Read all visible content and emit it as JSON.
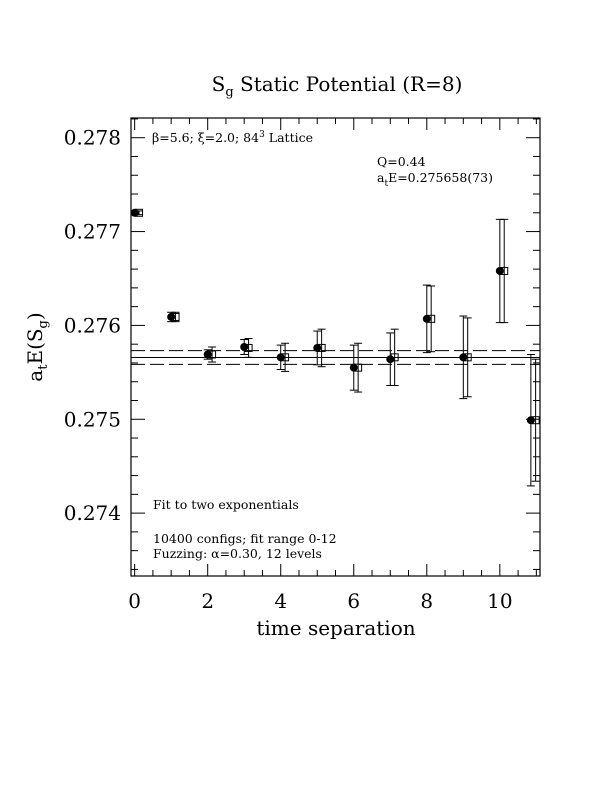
{
  "chart_data": {
    "type": "scatter",
    "title_main": "S",
    "title_sub": "g",
    "title_rest": " Static Potential (R=8)",
    "xlabel": "time separation",
    "ylabel_pre": "a",
    "ylabel_sub1": "t",
    "ylabel_mid": "E(S",
    "ylabel_sub2": "g",
    "ylabel_post": ")",
    "xlim": [
      -0.1,
      11.1
    ],
    "ylim": [
      0.27333,
      0.27821
    ],
    "xticks": [
      "0",
      "2",
      "4",
      "6",
      "8",
      "10"
    ],
    "xtick_values": [
      0,
      2,
      4,
      6,
      8,
      10
    ],
    "yticks": [
      "0.274",
      "0.275",
      "0.276",
      "0.277",
      "0.278"
    ],
    "ytick_values": [
      0.274,
      0.275,
      0.276,
      0.277,
      0.278
    ],
    "annotations": {
      "lattice_pre": "β=5.6; ξ=2.0; 84",
      "lattice_sup": "3",
      "lattice_post": " Lattice",
      "q": "Q=0.44",
      "energy_pre": "a",
      "energy_sub": "t",
      "energy_post": "E=0.275658(73)",
      "fit_desc": "Fit to two exponentials",
      "configs": "10400 configs; fit range 0-12",
      "fuzzing": "Fuzzing: α=0.30, 12 levels"
    },
    "fit": {
      "central": 0.275658,
      "error": 7.3e-05,
      "x_range": [
        -0.1,
        11.1
      ],
      "line_style": "solid center, dashed bounds"
    },
    "series": [
      {
        "marker": "filled-circle",
        "points": [
          {
            "x": 0,
            "y": 0.2772,
            "err": 2e-05
          },
          {
            "x": 1,
            "y": 0.27609,
            "err": 5e-05
          },
          {
            "x": 2,
            "y": 0.27569,
            "err": 5e-05
          },
          {
            "x": 3,
            "y": 0.27577,
            "err": 8e-05
          },
          {
            "x": 4,
            "y": 0.27566,
            "err": 0.00013
          },
          {
            "x": 5,
            "y": 0.27576,
            "err": 0.00018
          },
          {
            "x": 6,
            "y": 0.27555,
            "err": 0.00024
          },
          {
            "x": 7,
            "y": 0.27564,
            "err": 0.00028
          },
          {
            "x": 8,
            "y": 0.27607,
            "err": 0.00036
          },
          {
            "x": 9,
            "y": 0.27566,
            "err": 0.00044
          },
          {
            "x": 10,
            "y": 0.27658,
            "err": 0.00055
          },
          {
            "x": 10.85,
            "y": 0.27499,
            "err": 0.0007
          }
        ]
      },
      {
        "marker": "open-square",
        "points": [
          {
            "x": 0.12,
            "y": 0.2772,
            "err": 2e-05
          },
          {
            "x": 1.12,
            "y": 0.27609,
            "err": 5e-05
          },
          {
            "x": 2.12,
            "y": 0.27569,
            "err": 8e-05
          },
          {
            "x": 3.12,
            "y": 0.27576,
            "err": 0.0001
          },
          {
            "x": 4.12,
            "y": 0.27566,
            "err": 0.00015
          },
          {
            "x": 5.12,
            "y": 0.27576,
            "err": 0.0002
          },
          {
            "x": 6.12,
            "y": 0.27555,
            "err": 0.00026
          },
          {
            "x": 7.12,
            "y": 0.27566,
            "err": 0.0003
          },
          {
            "x": 8.12,
            "y": 0.27607,
            "err": 0.00035
          },
          {
            "x": 9.12,
            "y": 0.27566,
            "err": 0.00042
          },
          {
            "x": 10.12,
            "y": 0.27658,
            "err": 0.00055
          },
          {
            "x": 10.98,
            "y": 0.27499,
            "err": 0.00065
          }
        ]
      }
    ]
  }
}
